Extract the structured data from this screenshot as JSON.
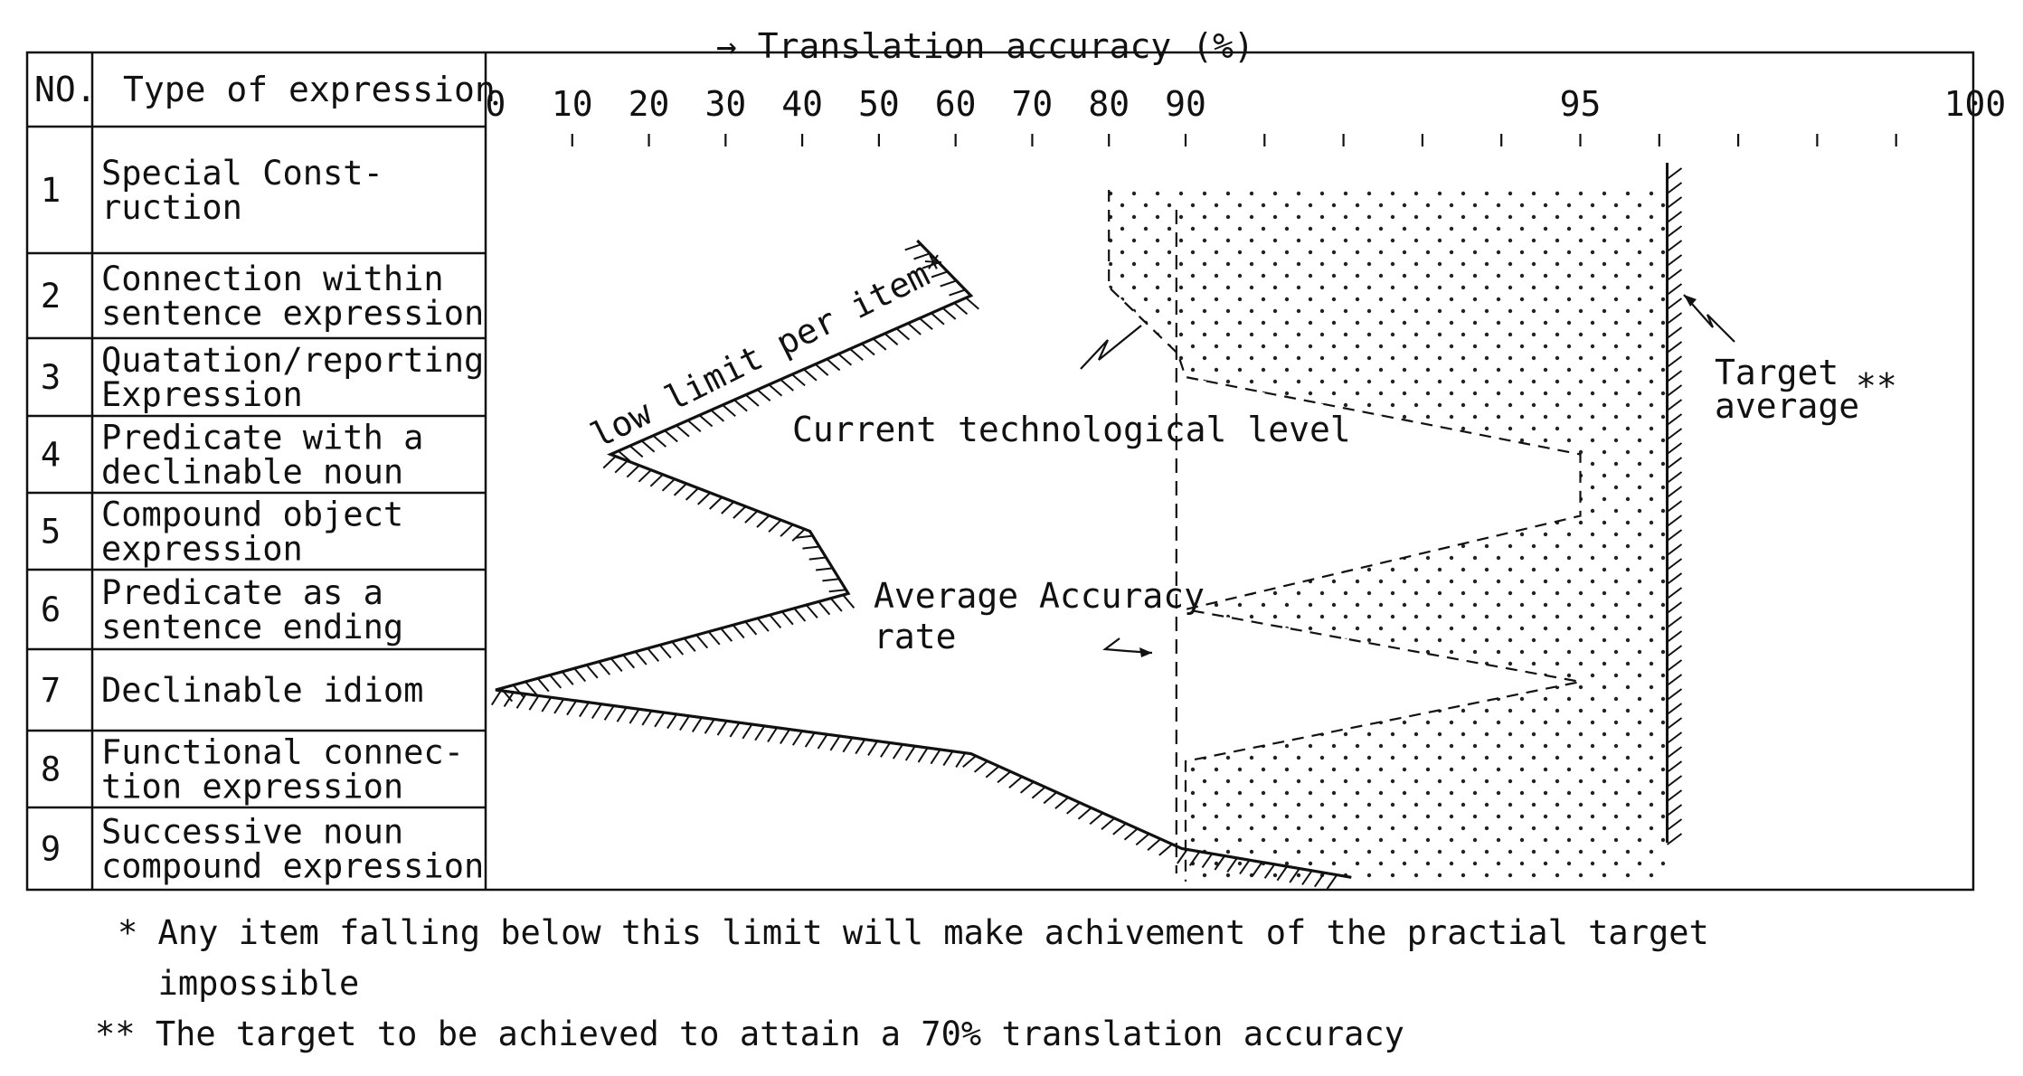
{
  "chart_data": {
    "type": "line",
    "title": "",
    "x_axis": {
      "label": "→ Translation accuracy (%)",
      "tick_labels": [
        "0",
        "10",
        "20",
        "30",
        "40",
        "50",
        "60",
        "70",
        "80",
        "90",
        "95",
        "100"
      ],
      "range": [
        0,
        100
      ],
      "scale": "piecewise: 0-90 linear, 90-100 expanded"
    },
    "table": {
      "col_no": "NO.",
      "col_type": "Type of expression",
      "rows": [
        {
          "no": "1",
          "line1": "Special Const-",
          "line2": "ruction"
        },
        {
          "no": "2",
          "line1": "Connection within",
          "line2": "sentence expression"
        },
        {
          "no": "3",
          "line1": "Quatation/reporting",
          "line2": "Expression"
        },
        {
          "no": "4",
          "line1": "Predicate with a",
          "line2": "declinable noun"
        },
        {
          "no": "5",
          "line1": "Compound object",
          "line2": "expression"
        },
        {
          "no": "6",
          "line1": "Predicate as a",
          "line2": "sentence ending"
        },
        {
          "no": "7",
          "line1": "Declinable idiom",
          "line2": ""
        },
        {
          "no": "8",
          "line1": "Functional connec-",
          "line2": "tion expression"
        },
        {
          "no": "9",
          "line1": "Successive noun",
          "line2": "compound expression"
        }
      ]
    },
    "series": [
      {
        "name": "low limit per item*",
        "style": "hatched",
        "points": [
          {
            "row": 0.9,
            "x": 55
          },
          {
            "row": 1.5,
            "x": 62
          },
          {
            "row": 3.5,
            "x": 15
          },
          {
            "row": 4.5,
            "x": 41
          },
          {
            "row": 5.3,
            "x": 46
          },
          {
            "row": 6.5,
            "x": 0
          },
          {
            "row": 7.3,
            "x": 62
          },
          {
            "row": 8.5,
            "x": 89.5
          },
          {
            "row": 8.85,
            "x": 92.1
          }
        ]
      },
      {
        "name": "Current technological level",
        "style": "dashed, dotted fill",
        "points": [
          {
            "row": 0.5,
            "x": 80
          },
          {
            "row": 1.4,
            "x": 80
          },
          {
            "row": 2.2,
            "x": 89
          },
          {
            "row": 2.5,
            "x": 90
          },
          {
            "row": 3.5,
            "x": 95
          },
          {
            "row": 4.3,
            "x": 95
          },
          {
            "row": 5.5,
            "x": 90
          },
          {
            "row": 6.4,
            "x": 95
          },
          {
            "row": 7.4,
            "x": 90
          },
          {
            "row": 8.9,
            "x": 90
          }
        ]
      },
      {
        "name": "Average Accuracy rate",
        "style": "vertical dashed",
        "x": 88.8
      },
      {
        "name": "Target average**",
        "style": "vertical hatched",
        "x": 96.1
      }
    ],
    "annotations": {
      "low_limit": "low limit per item*",
      "current": "Current technological level",
      "avg_line1": "Average Accuracy",
      "avg_line2": "rate",
      "target_line1": "Target",
      "target_line2": "average",
      "target_mark": "**"
    },
    "footnotes": {
      "f1_line1": "* Any item falling below this limit will make achivement of the practial target",
      "f1_line2": "  impossible",
      "f2": "** The target to be achieved to attain a 70% translation accuracy"
    }
  }
}
